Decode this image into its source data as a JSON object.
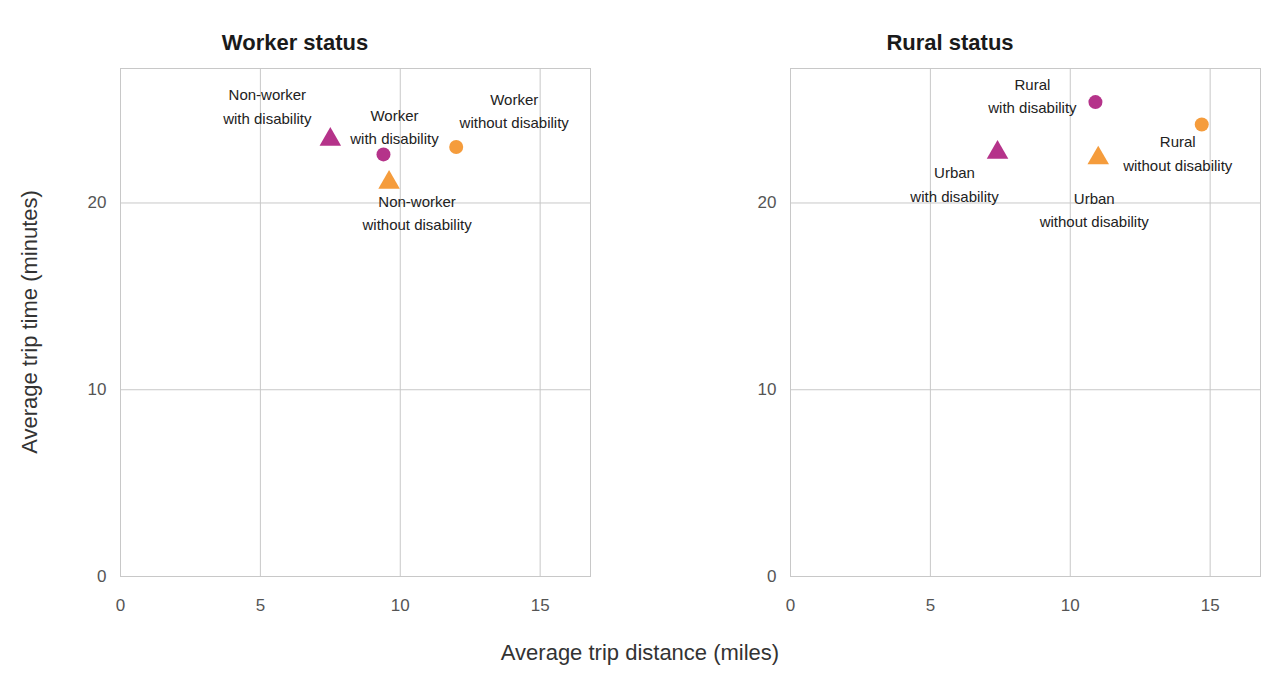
{
  "chart_data": {
    "type": "scatter",
    "xlabel": "Average trip distance (miles)",
    "ylabel": "Average trip time (minutes)",
    "xlim": [
      0,
      16.8
    ],
    "ylim": [
      0,
      27.2
    ],
    "xticks": [
      0,
      5,
      10,
      15
    ],
    "yticks": [
      0,
      10,
      20
    ],
    "grid": true,
    "panels": [
      {
        "title": "Worker status",
        "series": [
          {
            "name": "Non-worker with disability",
            "color": "#b5338a",
            "marker": "triangle",
            "x": [
              7.5
            ],
            "y": [
              23.4
            ]
          },
          {
            "name": "Worker with disability",
            "color": "#b5338a",
            "marker": "circle",
            "x": [
              9.4
            ],
            "y": [
              22.6
            ]
          },
          {
            "name": "Worker without disability",
            "color": "#f59c3c",
            "marker": "circle",
            "x": [
              12.0
            ],
            "y": [
              23.0
            ]
          },
          {
            "name": "Non-worker without disability",
            "color": "#f59c3c",
            "marker": "triangle",
            "x": [
              9.6
            ],
            "y": [
              21.1
            ]
          }
        ]
      },
      {
        "title": "Rural status",
        "series": [
          {
            "name": "Rural with disability",
            "color": "#b5338a",
            "marker": "circle",
            "x": [
              10.9
            ],
            "y": [
              25.4
            ]
          },
          {
            "name": "Rural without disability",
            "color": "#f59c3c",
            "marker": "circle",
            "x": [
              14.7
            ],
            "y": [
              24.2
            ]
          },
          {
            "name": "Urban with disability",
            "color": "#b5338a",
            "marker": "triangle",
            "x": [
              7.4
            ],
            "y": [
              22.7
            ]
          },
          {
            "name": "Urban without disability",
            "color": "#f59c3c",
            "marker": "triangle",
            "x": [
              11.0
            ],
            "y": [
              22.4
            ]
          }
        ]
      }
    ]
  }
}
